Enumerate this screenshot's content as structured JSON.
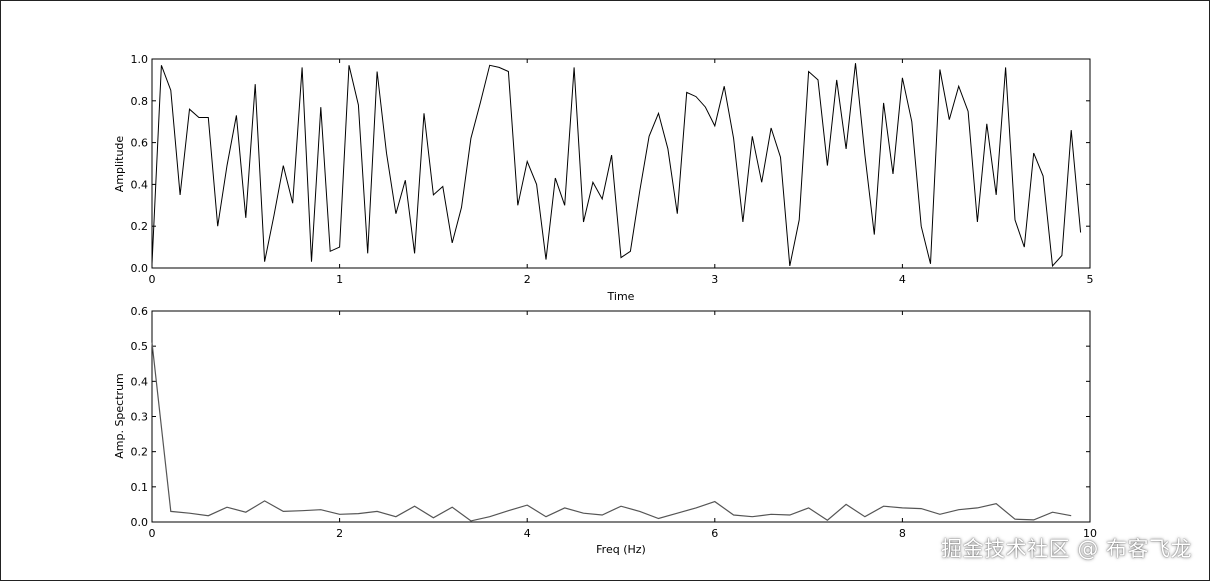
{
  "watermark": "掘金技术社区 @ 布客飞龙",
  "colors": {
    "time_line": "#000000",
    "spectrum_line": "#555555",
    "frame": "#000000"
  },
  "chart_data": [
    {
      "type": "line",
      "title": "",
      "xlabel": "Time",
      "ylabel": "Amplitude",
      "xlim": [
        0,
        5
      ],
      "ylim": [
        0,
        1.0
      ],
      "xticks": [
        "0",
        "1",
        "2",
        "3",
        "4",
        "5"
      ],
      "yticks": [
        "0.0",
        "0.2",
        "0.4",
        "0.6",
        "0.8",
        "1.0"
      ],
      "grid": false,
      "series": [
        {
          "x": [
            0.0,
            0.05,
            0.1,
            0.15,
            0.2,
            0.25,
            0.3,
            0.35,
            0.4,
            0.45,
            0.5,
            0.55,
            0.6,
            0.65,
            0.7,
            0.75,
            0.8,
            0.85,
            0.9,
            0.95,
            1.0,
            1.05,
            1.1,
            1.15,
            1.2,
            1.25,
            1.3,
            1.35,
            1.4,
            1.45,
            1.5,
            1.55,
            1.6,
            1.65,
            1.7,
            1.75,
            1.8,
            1.85,
            1.9,
            1.95,
            2.0,
            2.05,
            2.1,
            2.15,
            2.2,
            2.25,
            2.3,
            2.35,
            2.4,
            2.45,
            2.5,
            2.55,
            2.6,
            2.65,
            2.7,
            2.75,
            2.8,
            2.85,
            2.9,
            2.95,
            3.0,
            3.05,
            3.1,
            3.15,
            3.2,
            3.25,
            3.3,
            3.35,
            3.4,
            3.45,
            3.5,
            3.55,
            3.6,
            3.65,
            3.7,
            3.75,
            3.8,
            3.85,
            3.9,
            3.95,
            4.0,
            4.05,
            4.1,
            4.15,
            4.2,
            4.25,
            4.3,
            4.35,
            4.4,
            4.45,
            4.5,
            4.55,
            4.6,
            4.65,
            4.7,
            4.75,
            4.8,
            4.85,
            4.9,
            4.95
          ],
          "y": [
            0.02,
            0.97,
            0.85,
            0.35,
            0.76,
            0.72,
            0.72,
            0.2,
            0.49,
            0.73,
            0.24,
            0.88,
            0.03,
            0.25,
            0.49,
            0.31,
            0.96,
            0.03,
            0.77,
            0.08,
            0.1,
            0.97,
            0.78,
            0.07,
            0.94,
            0.55,
            0.26,
            0.42,
            0.07,
            0.74,
            0.35,
            0.39,
            0.12,
            0.29,
            0.62,
            0.79,
            0.97,
            0.96,
            0.94,
            0.3,
            0.51,
            0.4,
            0.04,
            0.43,
            0.3,
            0.96,
            0.22,
            0.41,
            0.33,
            0.54,
            0.05,
            0.08,
            0.37,
            0.63,
            0.74,
            0.57,
            0.26,
            0.84,
            0.82,
            0.77,
            0.68,
            0.87,
            0.62,
            0.22,
            0.63,
            0.41,
            0.67,
            0.53,
            0.01,
            0.23,
            0.94,
            0.9,
            0.49,
            0.9,
            0.57,
            0.98,
            0.54,
            0.16,
            0.79,
            0.45,
            0.91,
            0.7,
            0.2,
            0.02,
            0.95,
            0.71,
            0.87,
            0.75,
            0.22,
            0.69,
            0.35,
            0.96,
            0.23,
            0.1,
            0.55,
            0.44,
            0.01,
            0.06,
            0.66,
            0.17
          ]
        }
      ]
    },
    {
      "type": "line",
      "title": "",
      "xlabel": "Freq (Hz)",
      "ylabel": "Amp. Spectrum",
      "xlim": [
        0,
        10
      ],
      "ylim": [
        0,
        0.6
      ],
      "xticks": [
        "0",
        "2",
        "4",
        "6",
        "8",
        "10"
      ],
      "yticks": [
        "0.0",
        "0.1",
        "0.2",
        "0.3",
        "0.4",
        "0.5",
        "0.6"
      ],
      "grid": false,
      "series": [
        {
          "x": [
            0.0,
            0.2,
            0.4,
            0.6,
            0.8,
            1.0,
            1.2,
            1.4,
            1.6,
            1.8,
            2.0,
            2.2,
            2.4,
            2.6,
            2.8,
            3.0,
            3.2,
            3.4,
            3.6,
            3.8,
            4.0,
            4.2,
            4.4,
            4.6,
            4.8,
            5.0,
            5.2,
            5.4,
            5.6,
            5.8,
            6.0,
            6.2,
            6.4,
            6.6,
            6.8,
            7.0,
            7.2,
            7.4,
            7.6,
            7.8,
            8.0,
            8.2,
            8.4,
            8.6,
            8.8,
            9.0,
            9.2,
            9.4,
            9.6,
            9.8
          ],
          "y": [
            0.51,
            0.03,
            0.025,
            0.018,
            0.042,
            0.028,
            0.06,
            0.03,
            0.032,
            0.035,
            0.022,
            0.024,
            0.03,
            0.015,
            0.045,
            0.012,
            0.042,
            0.003,
            0.015,
            0.032,
            0.048,
            0.015,
            0.04,
            0.025,
            0.02,
            0.045,
            0.03,
            0.01,
            0.025,
            0.04,
            0.058,
            0.02,
            0.015,
            0.022,
            0.02,
            0.04,
            0.005,
            0.05,
            0.015,
            0.045,
            0.04,
            0.038,
            0.022,
            0.035,
            0.04,
            0.052,
            0.008,
            0.006,
            0.028,
            0.018
          ]
        }
      ]
    }
  ]
}
